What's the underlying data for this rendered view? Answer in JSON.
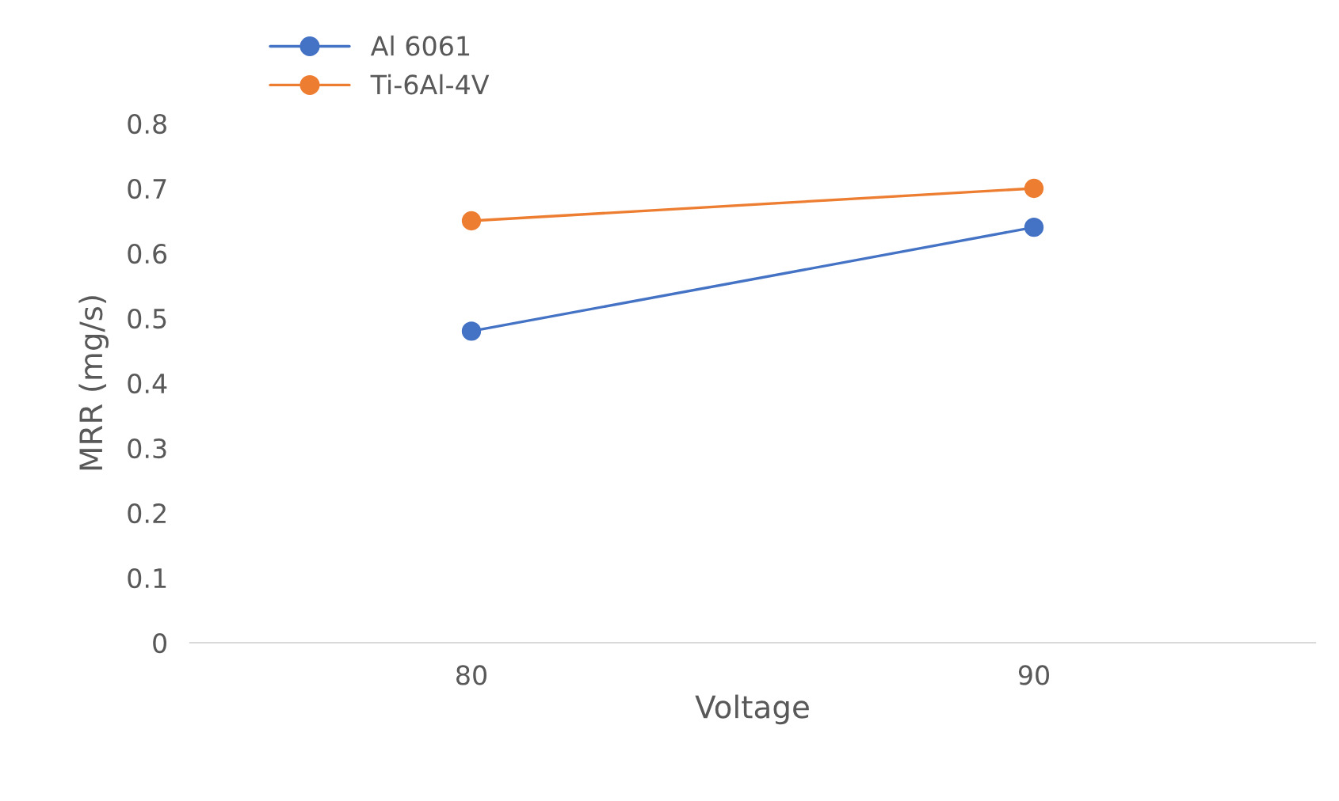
{
  "chart_data": {
    "type": "line",
    "xlabel": "Voltage",
    "ylabel": "MRR (mg/s)",
    "categories": [
      "80",
      "90"
    ],
    "series": [
      {
        "name": "Al 6061",
        "color": "#4472c4",
        "values": [
          0.48,
          0.64
        ]
      },
      {
        "name": "Ti-6Al-4V",
        "color": "#ed7d31",
        "values": [
          0.65,
          0.7
        ]
      }
    ],
    "ylim": [
      0,
      0.8
    ],
    "yticks": [
      {
        "value": 0,
        "label": "0"
      },
      0.1,
      0.2,
      0.3,
      0.4,
      0.5,
      0.6,
      0.7,
      0.8
    ],
    "grid": false,
    "legend": "top left",
    "marker": "circle",
    "line_style": "solid"
  }
}
